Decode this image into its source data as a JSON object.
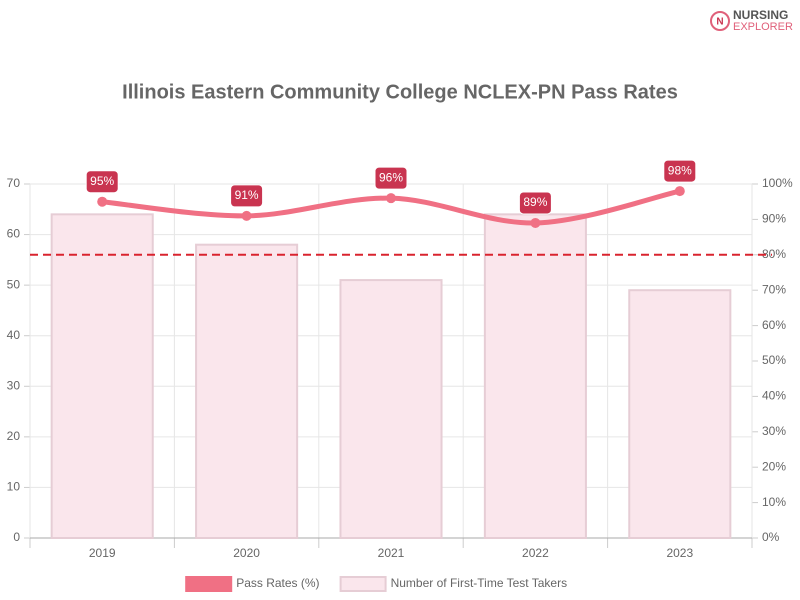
{
  "logo": [
    "NURSING",
    "EXPLORER"
  ],
  "chart_data": {
    "type": "combo",
    "title": "Illinois Eastern Community College NCLEX-PN Pass Rates",
    "categories": [
      "2019",
      "2020",
      "2021",
      "2022",
      "2023"
    ],
    "series": [
      {
        "name": "Pass Rates (%)",
        "type": "line",
        "axis": "y2",
        "color": "#f07084",
        "label_color": "#c93450",
        "values": [
          95,
          91,
          96,
          89,
          98
        ],
        "value_labels": [
          "95%",
          "91%",
          "96%",
          "89%",
          "98%"
        ]
      },
      {
        "name": "Number of First-Time Test Takers",
        "type": "bar",
        "color": "#fae6ec",
        "border": "#e6cdd5",
        "values": [
          64,
          58,
          51,
          64,
          49
        ]
      }
    ],
    "ylim": [
      0,
      70
    ],
    "yticks": [
      0,
      10,
      20,
      30,
      40,
      50,
      60,
      70
    ],
    "y2lim": [
      0,
      100
    ],
    "y2ticks": [
      {
        "value": 0,
        "label": "0%"
      },
      {
        "value": 10,
        "label": "10%"
      },
      {
        "value": 20,
        "label": "20%"
      },
      {
        "value": 30,
        "label": "30%"
      },
      {
        "value": 40,
        "label": "40%"
      },
      {
        "value": 50,
        "label": "50%"
      },
      {
        "value": 60,
        "label": "60%"
      },
      {
        "value": 70,
        "label": "70%"
      },
      {
        "value": 80,
        "label": "80%"
      },
      {
        "value": 90,
        "label": "90%"
      },
      {
        "value": 100,
        "label": "100%"
      }
    ],
    "reference_line": {
      "value": 80,
      "axis": "y2",
      "color": "#d9232e"
    },
    "grid": true,
    "legend": "bottom"
  }
}
